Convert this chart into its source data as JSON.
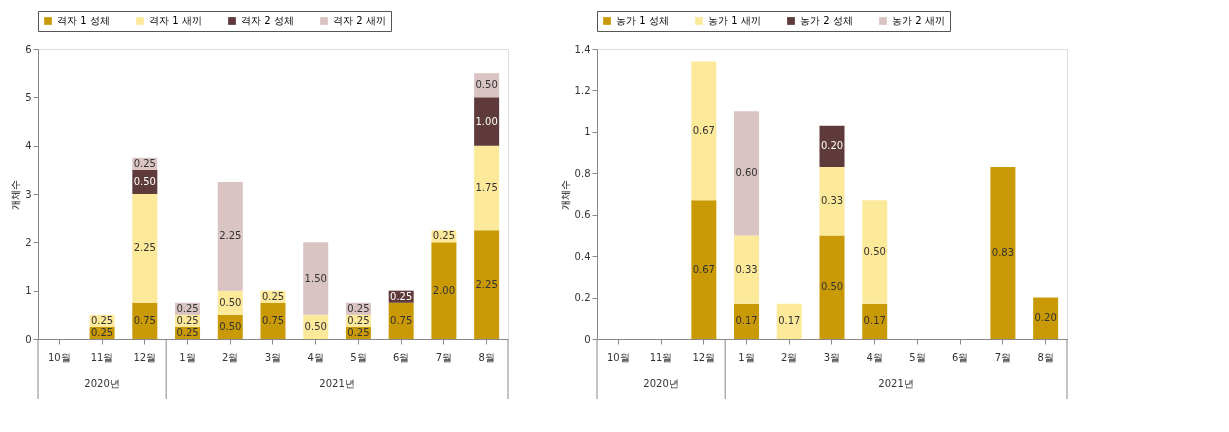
{
  "chart_data": [
    {
      "type": "bar",
      "stacked": true,
      "ylabel": "개체수",
      "legend": "top",
      "grid": false,
      "categories": [
        "10월",
        "11월",
        "12월",
        "1월",
        "2월",
        "3월",
        "4월",
        "5월",
        "6월",
        "7월",
        "8월"
      ],
      "ylim": [
        0,
        6
      ],
      "yticks": [
        0,
        1,
        2,
        3,
        4,
        5,
        6
      ],
      "annotations": [
        "2020년",
        "2021년"
      ],
      "series": [
        {
          "name": "격자 1 성체",
          "color": "#c99a06",
          "values": [
            null,
            0.25,
            0.75,
            0.25,
            0.5,
            0.75,
            null,
            0.25,
            0.75,
            2.0,
            2.25
          ],
          "value_labels": [
            null,
            "0.25",
            "0.75",
            "0.25",
            "0.50",
            "0.75",
            null,
            "0.25",
            "0.75",
            "2.00",
            "2.25"
          ]
        },
        {
          "name": "격자 1 새끼",
          "color": "#fde99a",
          "values": [
            null,
            0.25,
            2.25,
            0.25,
            0.5,
            0.25,
            0.5,
            0.25,
            null,
            0.25,
            1.75
          ],
          "value_labels": [
            null,
            "0.25",
            "2.25",
            "0.25",
            "0.50",
            "0.25",
            "0.50",
            "0.25",
            null,
            "0.25",
            "1.75"
          ]
        },
        {
          "name": "격자 2 성체",
          "color": "#5e3a3a",
          "values": [
            null,
            null,
            0.5,
            null,
            null,
            null,
            null,
            null,
            0.25,
            null,
            1.0
          ],
          "value_labels": [
            null,
            null,
            "0.50",
            null,
            null,
            null,
            null,
            null,
            "0.25",
            null,
            "1.00"
          ]
        },
        {
          "name": "격자 2 새끼",
          "color": "#d9c3c3",
          "values": [
            null,
            null,
            0.25,
            0.25,
            2.25,
            null,
            1.5,
            0.25,
            null,
            null,
            0.5
          ],
          "value_labels": [
            null,
            null,
            "0.25",
            "0.25",
            "2.25",
            null,
            "1.50",
            "0.25",
            null,
            null,
            "0.50"
          ]
        }
      ]
    },
    {
      "type": "bar",
      "stacked": true,
      "ylabel": "개체수",
      "legend": "top",
      "grid": false,
      "categories": [
        "10월",
        "11월",
        "12월",
        "1월",
        "2월",
        "3월",
        "4월",
        "5월",
        "6월",
        "7월",
        "8월"
      ],
      "ylim": [
        0,
        1.4
      ],
      "yticks": [
        0,
        0.2,
        0.4,
        0.6,
        0.8,
        1,
        1.2,
        1.4
      ],
      "annotations": [
        "2020년",
        "2021년"
      ],
      "series": [
        {
          "name": "농가 1 성체",
          "color": "#c99a06",
          "values": [
            null,
            null,
            0.67,
            0.17,
            null,
            0.5,
            0.17,
            null,
            null,
            0.83,
            0.2
          ],
          "value_labels": [
            null,
            null,
            "0.67",
            "0.17",
            null,
            "0.50",
            "0.17",
            null,
            null,
            "0.83",
            "0.20"
          ]
        },
        {
          "name": "농가 1 새끼",
          "color": "#fde99a",
          "values": [
            null,
            null,
            0.67,
            0.33,
            0.17,
            0.33,
            0.5,
            null,
            null,
            null,
            null
          ],
          "value_labels": [
            null,
            null,
            "0.67",
            "0.33",
            "0.17",
            "0.33",
            "0.50",
            null,
            null,
            null,
            null
          ]
        },
        {
          "name": "농가 2 성체",
          "color": "#5e3a3a",
          "values": [
            null,
            null,
            null,
            null,
            null,
            0.2,
            null,
            null,
            null,
            null,
            null
          ],
          "value_labels": [
            null,
            null,
            null,
            null,
            null,
            "0.20",
            null,
            null,
            null,
            null,
            null
          ]
        },
        {
          "name": "농가 2 새끼",
          "color": "#d9c3c3",
          "values": [
            null,
            null,
            null,
            0.6,
            null,
            null,
            null,
            null,
            null,
            null,
            null
          ],
          "value_labels": [
            null,
            null,
            null,
            "0.60",
            null,
            null,
            null,
            null,
            null,
            null,
            null
          ]
        }
      ]
    }
  ]
}
